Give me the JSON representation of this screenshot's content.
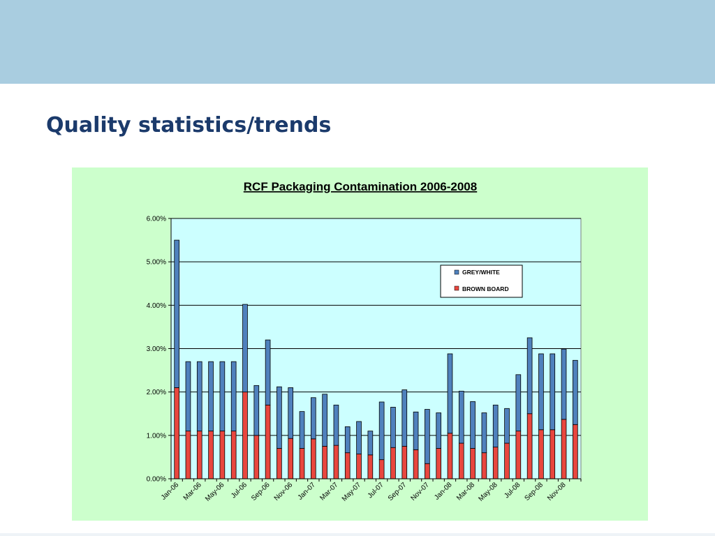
{
  "slide": {
    "title": "Quality statistics/trends"
  },
  "colors": {
    "top_band": "#a9cde0",
    "title": "#1b3a6b",
    "chart_background": "#ccffcc",
    "plot_background": "#ccffff",
    "grey_white": "#4f81bd",
    "brown_board": "#e8473f"
  },
  "chart_data": {
    "type": "bar",
    "stacked": true,
    "title": "RCF Packaging Contamination 2006-2008",
    "xlabel": "",
    "ylabel": "",
    "ylim": [
      0,
      6
    ],
    "y_unit": "%",
    "y_ticks": [
      "0.00%",
      "1.00%",
      "2.00%",
      "3.00%",
      "4.00%",
      "5.00%",
      "6.00%"
    ],
    "grid": true,
    "legend_position": "top-right",
    "categories": [
      "Jan-06",
      "Feb-06",
      "Mar-06",
      "Apr-06",
      "May-06",
      "Jun-06",
      "Jul-06",
      "Aug-06",
      "Sep-06",
      "Oct-06",
      "Nov-06",
      "Dec-06",
      "Jan-07",
      "Feb-07",
      "Mar-07",
      "Apr-07",
      "May-07",
      "Jun-07",
      "Jul-07",
      "Aug-07",
      "Sep-07",
      "Oct-07",
      "Nov-07",
      "Dec-07",
      "Jan-08",
      "Feb-08",
      "Mar-08",
      "Apr-08",
      "May-08",
      "Jun-08",
      "Jul-08",
      "Aug-08",
      "Sep-08",
      "Oct-08",
      "Nov-08",
      "Dec-08"
    ],
    "tick_labels": [
      "Jan-06",
      "Mar-06",
      "May-06",
      "Jul-06",
      "Sep-06",
      "Nov-06",
      "Jan-07",
      "Mar-07",
      "May-07",
      "Jul-07",
      "Sep-07",
      "Nov-07",
      "Jan-08",
      "Mar-08",
      "May-08",
      "Jul-08",
      "Sep-08",
      "Nov-08"
    ],
    "series": [
      {
        "name": "BROWN BOARD",
        "values": [
          2.1,
          1.1,
          1.1,
          1.1,
          1.1,
          1.1,
          2.0,
          1.0,
          1.7,
          0.7,
          0.93,
          0.7,
          0.92,
          0.75,
          0.77,
          0.6,
          0.57,
          0.55,
          0.44,
          0.72,
          0.75,
          0.67,
          0.35,
          0.7,
          1.05,
          0.82,
          0.7,
          0.6,
          0.73,
          0.82,
          1.1,
          1.5,
          1.13,
          1.13,
          1.37,
          1.25
        ]
      },
      {
        "name": "GREY/WHITE",
        "values": [
          3.4,
          1.6,
          1.6,
          1.6,
          1.6,
          1.6,
          2.02,
          1.15,
          1.5,
          1.42,
          1.17,
          0.85,
          0.95,
          1.2,
          0.93,
          0.6,
          0.75,
          0.55,
          1.33,
          0.93,
          1.3,
          0.87,
          1.25,
          0.82,
          1.83,
          1.2,
          1.08,
          0.92,
          0.97,
          0.8,
          1.3,
          1.75,
          1.75,
          1.75,
          1.62,
          1.48
        ]
      }
    ]
  }
}
